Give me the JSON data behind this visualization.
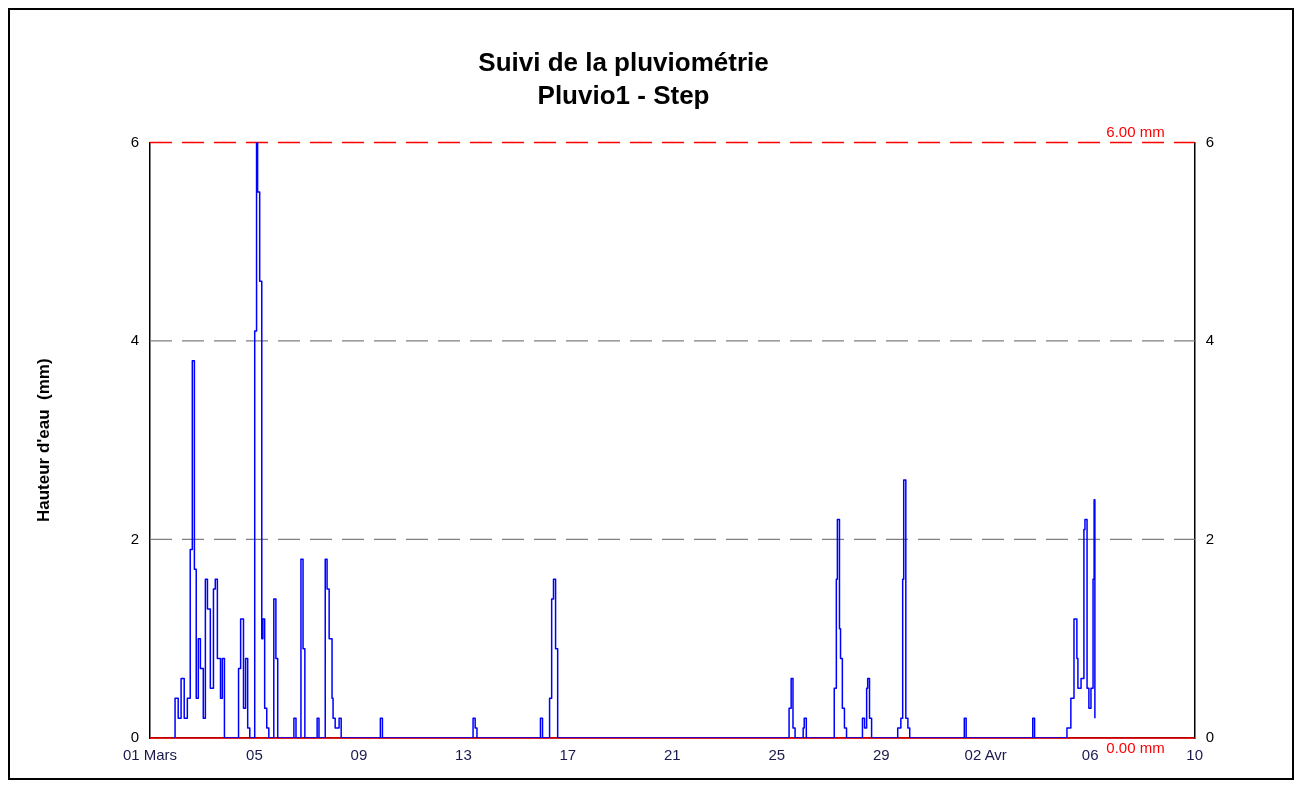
{
  "chart_data": {
    "type": "step",
    "title": "Suivi de la pluviométrie",
    "subtitle": "Pluvio1 - Step",
    "ylabel": "Hauteur d'eau  (mm)",
    "xlim": [
      "--03-01",
      "--04-10"
    ],
    "xticks": [
      {
        "value": "--03-01",
        "label": "01 Mars"
      },
      {
        "value": "--03-05",
        "label": "05"
      },
      {
        "value": "--03-09",
        "label": "09"
      },
      {
        "value": "--03-13",
        "label": "13"
      },
      {
        "value": "--03-17",
        "label": "17"
      },
      {
        "value": "--03-21",
        "label": "21"
      },
      {
        "value": "--03-25",
        "label": "25"
      },
      {
        "value": "--03-29",
        "label": "29"
      },
      {
        "value": "--04-02",
        "label": "02 Avr"
      },
      {
        "value": "--04-06",
        "label": "06"
      },
      {
        "value": "--04-10",
        "label": "10"
      }
    ],
    "ylim": [
      0,
      6
    ],
    "yticks": [
      0,
      2,
      4,
      6
    ],
    "y2lim": [
      0,
      6
    ],
    "y2ticks": [
      0,
      2,
      4,
      6
    ],
    "grid": "y",
    "legend": false,
    "line_style": "solid",
    "marker": "none",
    "ref_lines": [
      {
        "axis": "y",
        "value": 6,
        "label": "6.00 mm",
        "color": "#ff0000",
        "line_style": "dashed"
      },
      {
        "axis": "y",
        "value": 0,
        "label": "0.00 mm",
        "color": "#ff0000"
      }
    ],
    "series": [
      {
        "color": "#0000ff",
        "x": [
          "--03-01T21:36",
          "--03-01T23:02",
          "--03-02T01:55",
          "--03-02T04:34",
          "--03-02T07:26",
          "--03-02T10:19",
          "--03-02T12:58",
          "--03-02T14:53",
          "--03-02T16:48",
          "--03-02T18:29",
          "--03-02T20:24",
          "--03-02T22:19",
          "--03-03T00:58",
          "--03-03T02:53",
          "--03-03T04:48",
          "--03-03T07:26",
          "--03-03T10:19",
          "--03-03T12:00",
          "--03-03T13:55",
          "--03-03T16:48",
          "--03-03T18:29",
          "--03-03T20:24",
          "--03-04T09:22",
          "--03-04T11:17",
          "--03-04T13:55",
          "--03-04T15:50",
          "--03-04T17:46",
          "--03-04T19:41",
          "--03-05T00:14",
          "--03-05T01:55",
          "--03-05T02:53",
          "--03-05T04:48",
          "--03-05T06:43",
          "--03-05T07:41",
          "--03-05T09:22",
          "--03-05T11:17",
          "--03-05T13:12",
          "--03-05T17:46",
          "--03-05T19:41",
          "--03-05T21:22",
          "--03-06T12:14",
          "--03-06T14:10",
          "--03-06T18:43",
          "--03-06T20:38",
          "--03-06T22:19",
          "--03-07T09:36",
          "--03-07T11:17",
          "--03-07T17:02",
          "--03-07T18:43",
          "--03-07T20:38",
          "--03-07T23:17",
          "--03-08T00:14",
          "--03-08T02:10",
          "--03-08T05:46",
          "--03-08T07:41",
          "--03-09T19:41",
          "--03-09T21:36",
          "--03-13T08:53",
          "--03-13T10:48",
          "--03-13T12:29",
          "--03-15T22:48",
          "--03-16T00:43",
          "--03-16T07:12",
          "--03-16T09:07",
          "--03-16T10:48",
          "--03-16T12:43",
          "--03-16T14:38",
          "--03-25T11:17",
          "--03-25T13:12",
          "--03-25T14:53",
          "--03-25T16:48",
          "--03-26T00:14",
          "--03-26T01:12",
          "--03-26T03:07",
          "--03-27T04:48",
          "--03-27T06:43",
          "--03-27T07:41",
          "--03-27T09:36",
          "--03-27T10:34",
          "--03-27T12:14",
          "--03-27T14:10",
          "--03-27T16:05",
          "--03-28T06:43",
          "--03-28T08:38",
          "--03-28T10:34",
          "--03-28T11:31",
          "--03-28T13:12",
          "--03-28T15:07",
          "--03-29T15:07",
          "--03-29T18:00",
          "--03-29T19:41",
          "--03-29T20:38",
          "--03-29T22:34",
          "--03-30T00:29",
          "--03-30T02:10",
          "--04-01T04:19",
          "--04-01T06:00",
          "--04-03T19:12",
          "--04-03T20:53",
          "--04-05T02:38",
          "--04-05T06:14",
          "--04-05T09:07",
          "--04-05T11:46",
          "--04-05T12:43",
          "--04-05T15:36",
          "--04-05T18:14",
          "--04-05T19:12",
          "--04-05T21:07",
          "--04-05T22:48",
          "--04-06T00:43",
          "--04-06T02:38",
          "--04-06T03:36",
          "--04-06T04:19"
        ],
        "values": [
          0,
          0.4,
          0.2,
          0.6,
          0.2,
          0.4,
          1.9,
          3.8,
          1.7,
          0.4,
          1.0,
          0.7,
          0.2,
          1.6,
          1.3,
          0.5,
          1.5,
          1.6,
          0.8,
          0.4,
          0.8,
          0,
          0.7,
          1.2,
          0.3,
          0.8,
          0.1,
          0,
          4.1,
          6.0,
          5.5,
          4.6,
          1.0,
          1.2,
          0.3,
          0.1,
          0,
          1.4,
          0.8,
          0,
          0.2,
          0,
          1.8,
          0.9,
          0,
          0.2,
          0,
          1.8,
          1.5,
          1.0,
          0.4,
          0.2,
          0.1,
          0.2,
          0,
          0.2,
          0,
          0.2,
          0.1,
          0,
          0.2,
          0,
          0.4,
          1.4,
          1.6,
          0.9,
          0,
          0.3,
          0.6,
          0.1,
          0,
          0.1,
          0.2,
          0,
          0.5,
          1.6,
          2.2,
          1.1,
          0.8,
          0.3,
          0.1,
          0,
          0.2,
          0.1,
          0.5,
          0.6,
          0.2,
          0,
          0.1,
          0.2,
          1.6,
          2.6,
          0.2,
          0.1,
          0,
          0.2,
          0,
          0.2,
          0,
          0.1,
          0.4,
          1.2,
          0.8,
          0.5,
          0.6,
          2.1,
          2.2,
          0.5,
          0.3,
          0.5,
          1.6,
          2.4,
          0.2
        ]
      }
    ]
  }
}
